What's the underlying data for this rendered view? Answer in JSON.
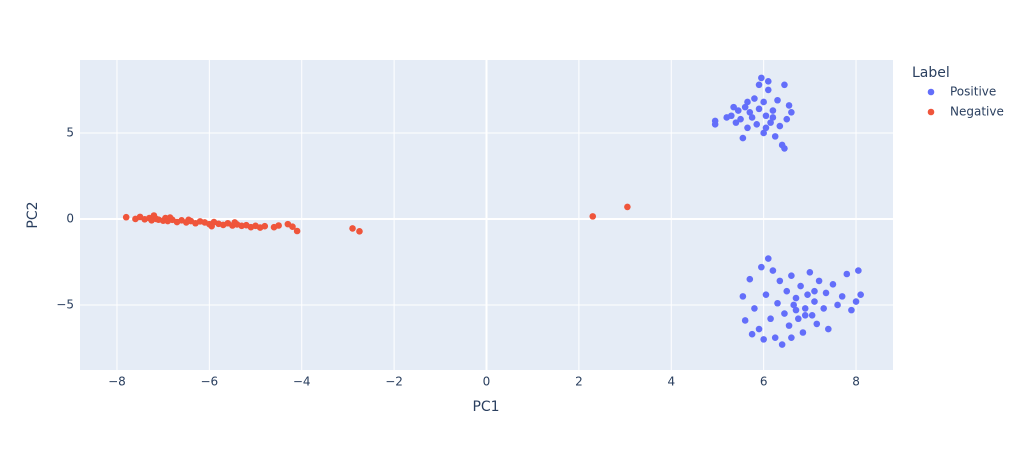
{
  "chart_data": {
    "type": "scatter",
    "x_label": "PC1",
    "y_label": "PC2",
    "legend_title": "Label",
    "legend_position": "right",
    "background": "#e5ecf6",
    "grid": true,
    "zeroline": true,
    "xlim": [
      -8.8,
      8.8
    ],
    "ylim": [
      -8.78,
      9.24
    ],
    "xticks": [
      {
        "value": -8,
        "label": "−8"
      },
      {
        "value": -6,
        "label": "−6"
      },
      {
        "value": -4,
        "label": "−4"
      },
      {
        "value": -2,
        "label": "−2"
      },
      0,
      2,
      4,
      6,
      8
    ],
    "yticks": [
      {
        "value": -5,
        "label": "−5"
      },
      0,
      5
    ],
    "series": [
      {
        "name": "Positive",
        "color": "#636efa",
        "x": [
          4.95,
          4.95,
          5.2,
          5.3,
          5.4,
          5.45,
          5.5,
          5.55,
          5.6,
          5.65,
          5.7,
          5.75,
          5.8,
          5.85,
          5.9,
          5.95,
          6.0,
          6.0,
          6.05,
          6.1,
          6.15,
          6.2,
          6.25,
          6.3,
          6.35,
          6.4,
          6.45,
          6.5,
          6.55,
          6.6,
          5.9,
          6.05,
          5.65,
          6.2,
          5.35,
          6.45,
          6.1,
          5.55,
          5.6,
          5.75,
          5.8,
          5.9,
          6.0,
          6.05,
          6.1,
          6.15,
          6.2,
          6.25,
          6.3,
          6.35,
          6.4,
          6.45,
          6.5,
          6.55,
          6.6,
          6.65,
          6.7,
          6.75,
          6.8,
          6.85,
          6.9,
          6.95,
          7.0,
          7.05,
          7.1,
          7.15,
          7.2,
          7.3,
          7.35,
          7.4,
          7.5,
          7.6,
          7.7,
          7.8,
          7.9,
          8.0,
          8.05,
          8.1,
          6.6,
          6.9,
          7.1,
          6.7,
          5.7,
          5.95
        ],
        "y": [
          5.5,
          5.7,
          5.9,
          6.0,
          5.6,
          6.3,
          5.8,
          4.7,
          6.5,
          5.3,
          6.2,
          5.9,
          7.0,
          5.5,
          6.4,
          8.2,
          5.0,
          6.8,
          6.0,
          7.5,
          5.6,
          6.3,
          4.8,
          6.9,
          5.4,
          4.3,
          7.8,
          5.8,
          6.6,
          6.2,
          7.8,
          5.3,
          6.8,
          5.9,
          6.5,
          4.1,
          8.0,
          -4.5,
          -5.9,
          -6.7,
          -5.2,
          -6.4,
          -7.0,
          -4.4,
          -2.3,
          -5.8,
          -3.0,
          -6.9,
          -4.9,
          -3.6,
          -7.3,
          -5.5,
          -4.2,
          -6.2,
          -3.3,
          -5.0,
          -4.6,
          -5.8,
          -3.9,
          -6.6,
          -5.2,
          -4.4,
          -3.1,
          -5.6,
          -4.8,
          -6.1,
          -3.6,
          -5.2,
          -4.3,
          -6.4,
          -3.8,
          -5.0,
          -4.5,
          -3.2,
          -5.3,
          -4.8,
          -3.0,
          -4.4,
          -6.9,
          -5.6,
          -4.2,
          -5.3,
          -3.5,
          -2.8
        ]
      },
      {
        "name": "Negative",
        "color": "#ef553b",
        "x": [
          -7.8,
          -7.6,
          -7.5,
          -7.4,
          -7.3,
          -7.25,
          -7.2,
          -7.1,
          -7.0,
          -6.95,
          -6.9,
          -6.8,
          -6.7,
          -6.6,
          -6.5,
          -6.4,
          -6.3,
          -6.2,
          -6.1,
          -6.0,
          -5.9,
          -5.8,
          -5.7,
          -5.6,
          -5.5,
          -5.4,
          -5.3,
          -5.2,
          -5.1,
          -5.0,
          -4.9,
          -4.8,
          -4.6,
          -4.5,
          -4.3,
          -4.2,
          -4.1,
          -2.9,
          -2.75,
          2.3,
          3.05,
          -7.15,
          -6.85,
          -6.45,
          -5.95,
          -5.45
        ],
        "y": [
          0.1,
          0.0,
          0.12,
          -0.02,
          0.05,
          -0.08,
          0.2,
          -0.04,
          -0.1,
          0.05,
          -0.12,
          -0.05,
          -0.18,
          -0.08,
          -0.2,
          -0.12,
          -0.25,
          -0.14,
          -0.2,
          -0.3,
          -0.18,
          -0.28,
          -0.35,
          -0.25,
          -0.38,
          -0.32,
          -0.4,
          -0.36,
          -0.48,
          -0.4,
          -0.5,
          -0.42,
          -0.48,
          -0.38,
          -0.3,
          -0.45,
          -0.7,
          -0.55,
          -0.72,
          0.15,
          0.7,
          0.0,
          0.08,
          -0.05,
          -0.42,
          -0.2
        ]
      }
    ]
  }
}
